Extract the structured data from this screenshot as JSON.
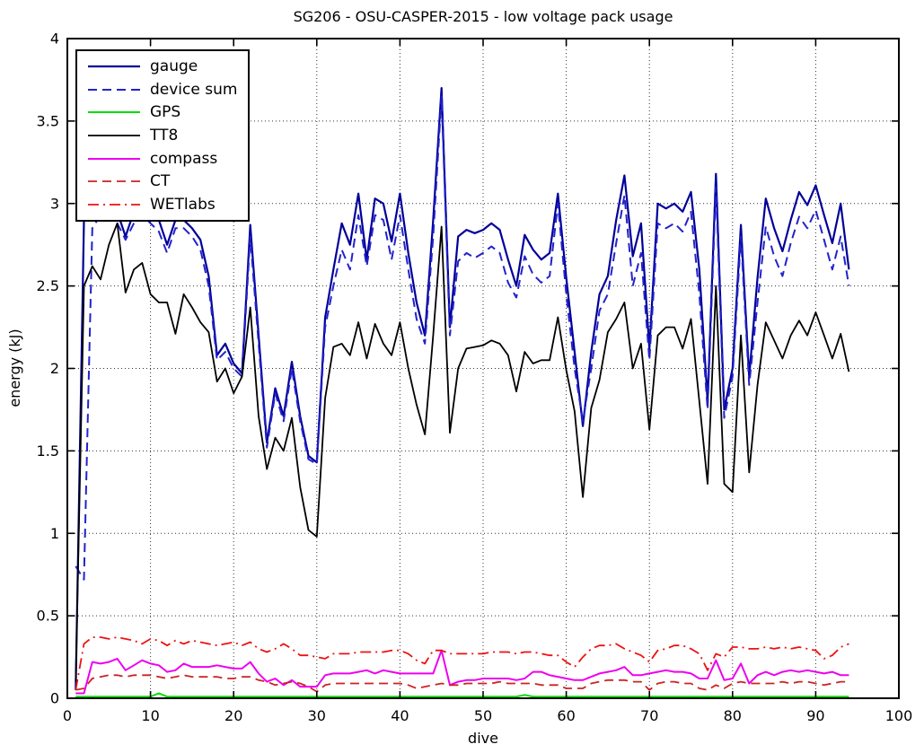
{
  "chart_data": {
    "type": "line",
    "title": "SG206 - OSU-CASPER-2015 - low voltage pack usage",
    "xlabel": "dive",
    "ylabel": "energy (kJ)",
    "xlim": [
      0,
      100
    ],
    "ylim": [
      0,
      4
    ],
    "xticks": [
      0,
      10,
      20,
      30,
      40,
      50,
      60,
      70,
      80,
      90,
      100
    ],
    "yticks": [
      0,
      0.5,
      1,
      1.5,
      2,
      2.5,
      3,
      3.5,
      4
    ],
    "grid": true,
    "grid_style": "dotted",
    "legend_position": "top-left",
    "background_color": "#ffffff",
    "axis_color": "#000000",
    "x": [
      1,
      2,
      3,
      4,
      5,
      6,
      7,
      8,
      9,
      10,
      11,
      12,
      13,
      14,
      15,
      16,
      17,
      18,
      19,
      20,
      21,
      22,
      23,
      24,
      25,
      26,
      27,
      28,
      29,
      30,
      31,
      32,
      33,
      34,
      35,
      36,
      37,
      38,
      39,
      40,
      41,
      42,
      43,
      44,
      45,
      46,
      47,
      48,
      49,
      50,
      51,
      52,
      53,
      54,
      55,
      56,
      57,
      58,
      59,
      60,
      61,
      62,
      63,
      64,
      65,
      66,
      67,
      68,
      69,
      70,
      71,
      72,
      73,
      74,
      75,
      76,
      77,
      78,
      79,
      80,
      81,
      82,
      83,
      84,
      85,
      86,
      87,
      88,
      89,
      90,
      91,
      92,
      93,
      94
    ],
    "series": [
      {
        "name": "gauge",
        "color": "#000099",
        "style": "solid",
        "width": 2.2,
        "values": [
          0.05,
          2.9,
          2.95,
          3.0,
          3.0,
          2.95,
          2.8,
          2.95,
          3.0,
          2.95,
          2.9,
          2.75,
          2.9,
          2.9,
          2.85,
          2.78,
          2.56,
          2.08,
          2.15,
          2.03,
          1.97,
          2.87,
          2.2,
          1.55,
          1.88,
          1.71,
          2.04,
          1.71,
          1.47,
          1.43,
          2.31,
          2.6,
          2.88,
          2.75,
          3.06,
          2.66,
          3.03,
          3.0,
          2.77,
          3.06,
          2.7,
          2.4,
          2.2,
          2.9,
          3.7,
          2.25,
          2.8,
          2.84,
          2.82,
          2.84,
          2.88,
          2.84,
          2.66,
          2.5,
          2.81,
          2.72,
          2.66,
          2.7,
          3.06,
          2.55,
          2.1,
          1.65,
          2.1,
          2.45,
          2.56,
          2.9,
          3.17,
          2.68,
          2.88,
          2.12,
          3.0,
          2.97,
          3.0,
          2.95,
          3.07,
          2.6,
          1.8,
          3.18,
          1.75,
          2.0,
          2.87,
          1.95,
          2.55,
          3.03,
          2.85,
          2.71,
          2.9,
          3.07,
          2.99,
          3.11,
          2.93,
          2.76,
          3.0,
          2.6
        ]
      },
      {
        "name": "device sum",
        "color": "#2222cc",
        "style": "dashed",
        "width": 2,
        "values": [
          0.8,
          0.72,
          2.85,
          2.93,
          2.93,
          2.88,
          2.78,
          2.88,
          2.93,
          2.88,
          2.83,
          2.7,
          2.85,
          2.85,
          2.8,
          2.72,
          2.5,
          2.05,
          2.1,
          2.0,
          1.95,
          2.8,
          2.15,
          1.52,
          1.85,
          1.68,
          2.0,
          1.68,
          1.45,
          1.42,
          2.25,
          2.5,
          2.72,
          2.6,
          2.93,
          2.62,
          2.93,
          2.9,
          2.66,
          2.93,
          2.6,
          2.3,
          2.15,
          2.8,
          3.65,
          2.2,
          2.65,
          2.7,
          2.67,
          2.7,
          2.74,
          2.7,
          2.52,
          2.43,
          2.68,
          2.57,
          2.52,
          2.56,
          3.0,
          2.45,
          2.0,
          1.68,
          2.0,
          2.35,
          2.45,
          2.76,
          3.05,
          2.5,
          2.7,
          2.05,
          2.88,
          2.85,
          2.88,
          2.83,
          2.95,
          2.45,
          1.75,
          3.1,
          1.7,
          1.95,
          2.8,
          1.9,
          2.4,
          2.86,
          2.68,
          2.56,
          2.76,
          2.92,
          2.85,
          2.96,
          2.78,
          2.6,
          2.8,
          2.5
        ]
      },
      {
        "name": "GPS",
        "color": "#00dd00",
        "style": "solid",
        "width": 2,
        "values": [
          0.01,
          0.01,
          0.01,
          0.01,
          0.01,
          0.01,
          0.01,
          0.01,
          0.01,
          0.01,
          0.03,
          0.01,
          0.01,
          0.01,
          0.01,
          0.01,
          0.01,
          0.01,
          0.01,
          0.01,
          0.01,
          0.01,
          0.01,
          0.01,
          0.01,
          0.01,
          0.01,
          0.01,
          0.01,
          0.01,
          0.01,
          0.01,
          0.01,
          0.01,
          0.01,
          0.01,
          0.01,
          0.01,
          0.01,
          0.01,
          0.01,
          0.01,
          0.01,
          0.01,
          0.01,
          0.01,
          0.01,
          0.01,
          0.01,
          0.01,
          0.01,
          0.01,
          0.01,
          0.01,
          0.02,
          0.01,
          0.01,
          0.01,
          0.01,
          0.01,
          0.01,
          0.01,
          0.01,
          0.01,
          0.01,
          0.01,
          0.01,
          0.01,
          0.01,
          0.01,
          0.01,
          0.01,
          0.01,
          0.01,
          0.01,
          0.01,
          0.01,
          0.01,
          0.01,
          0.01,
          0.01,
          0.01,
          0.01,
          0.01,
          0.01,
          0.01,
          0.01,
          0.01,
          0.01,
          0.01,
          0.01,
          0.01,
          0.01,
          0.01
        ]
      },
      {
        "name": "TT8",
        "color": "#000000",
        "style": "solid",
        "width": 1.8,
        "values": [
          0.1,
          2.5,
          2.62,
          2.54,
          2.75,
          2.88,
          2.46,
          2.6,
          2.64,
          2.45,
          2.4,
          2.4,
          2.21,
          2.45,
          2.37,
          2.28,
          2.22,
          1.92,
          2.0,
          1.85,
          1.95,
          2.37,
          1.71,
          1.39,
          1.58,
          1.5,
          1.7,
          1.28,
          1.02,
          0.98,
          1.82,
          2.13,
          2.15,
          2.08,
          2.28,
          2.06,
          2.27,
          2.15,
          2.08,
          2.28,
          2.0,
          1.78,
          1.6,
          2.2,
          2.86,
          1.61,
          2.0,
          2.12,
          2.13,
          2.14,
          2.17,
          2.15,
          2.08,
          1.86,
          2.1,
          2.03,
          2.05,
          2.05,
          2.31,
          1.99,
          1.74,
          1.22,
          1.76,
          1.93,
          2.22,
          2.3,
          2.4,
          2.0,
          2.15,
          1.63,
          2.2,
          2.25,
          2.25,
          2.12,
          2.3,
          1.8,
          1.3,
          2.5,
          1.3,
          1.25,
          2.2,
          1.37,
          1.9,
          2.28,
          2.17,
          2.06,
          2.2,
          2.29,
          2.2,
          2.34,
          2.2,
          2.06,
          2.21,
          1.98
        ]
      },
      {
        "name": "compass",
        "color": "#ee00ee",
        "style": "solid",
        "width": 2,
        "values": [
          0.03,
          0.03,
          0.22,
          0.21,
          0.22,
          0.24,
          0.17,
          0.2,
          0.23,
          0.21,
          0.2,
          0.16,
          0.17,
          0.21,
          0.19,
          0.19,
          0.19,
          0.2,
          0.19,
          0.18,
          0.18,
          0.22,
          0.15,
          0.1,
          0.12,
          0.08,
          0.11,
          0.07,
          0.07,
          0.07,
          0.14,
          0.15,
          0.15,
          0.15,
          0.16,
          0.17,
          0.15,
          0.17,
          0.16,
          0.15,
          0.15,
          0.15,
          0.15,
          0.15,
          0.29,
          0.08,
          0.1,
          0.11,
          0.11,
          0.12,
          0.12,
          0.12,
          0.12,
          0.11,
          0.12,
          0.16,
          0.16,
          0.14,
          0.13,
          0.12,
          0.11,
          0.11,
          0.13,
          0.15,
          0.16,
          0.17,
          0.19,
          0.14,
          0.14,
          0.15,
          0.16,
          0.17,
          0.16,
          0.16,
          0.15,
          0.12,
          0.12,
          0.23,
          0.11,
          0.12,
          0.21,
          0.09,
          0.14,
          0.16,
          0.14,
          0.16,
          0.17,
          0.16,
          0.17,
          0.16,
          0.15,
          0.16,
          0.14,
          0.14
        ]
      },
      {
        "name": "CT",
        "color": "#cc2222",
        "style": "dashed",
        "width": 1.8,
        "values": [
          0.05,
          0.06,
          0.12,
          0.13,
          0.14,
          0.14,
          0.13,
          0.14,
          0.14,
          0.14,
          0.13,
          0.12,
          0.13,
          0.14,
          0.13,
          0.13,
          0.13,
          0.13,
          0.12,
          0.12,
          0.13,
          0.13,
          0.11,
          0.1,
          0.08,
          0.09,
          0.1,
          0.09,
          0.07,
          0.04,
          0.08,
          0.09,
          0.09,
          0.09,
          0.09,
          0.09,
          0.09,
          0.09,
          0.09,
          0.09,
          0.08,
          0.06,
          0.07,
          0.08,
          0.09,
          0.08,
          0.08,
          0.09,
          0.09,
          0.09,
          0.09,
          0.1,
          0.09,
          0.09,
          0.09,
          0.09,
          0.08,
          0.08,
          0.08,
          0.06,
          0.06,
          0.06,
          0.09,
          0.1,
          0.11,
          0.11,
          0.11,
          0.1,
          0.1,
          0.05,
          0.09,
          0.1,
          0.1,
          0.09,
          0.09,
          0.06,
          0.05,
          0.08,
          0.06,
          0.09,
          0.1,
          0.09,
          0.09,
          0.09,
          0.09,
          0.1,
          0.09,
          0.1,
          0.1,
          0.09,
          0.08,
          0.09,
          0.1,
          0.1
        ]
      },
      {
        "name": "WETlabs",
        "color": "#ee1111",
        "style": "dashdot",
        "width": 1.8,
        "values": [
          0.05,
          0.33,
          0.37,
          0.37,
          0.36,
          0.37,
          0.36,
          0.35,
          0.33,
          0.36,
          0.35,
          0.32,
          0.35,
          0.33,
          0.35,
          0.34,
          0.33,
          0.32,
          0.33,
          0.34,
          0.32,
          0.34,
          0.3,
          0.28,
          0.3,
          0.33,
          0.3,
          0.26,
          0.26,
          0.25,
          0.24,
          0.27,
          0.27,
          0.27,
          0.28,
          0.28,
          0.28,
          0.28,
          0.29,
          0.29,
          0.27,
          0.23,
          0.21,
          0.29,
          0.29,
          0.27,
          0.27,
          0.27,
          0.27,
          0.27,
          0.28,
          0.28,
          0.28,
          0.27,
          0.28,
          0.28,
          0.27,
          0.26,
          0.26,
          0.22,
          0.19,
          0.25,
          0.3,
          0.32,
          0.32,
          0.33,
          0.3,
          0.28,
          0.26,
          0.22,
          0.29,
          0.3,
          0.32,
          0.32,
          0.3,
          0.27,
          0.17,
          0.27,
          0.25,
          0.31,
          0.31,
          0.3,
          0.3,
          0.31,
          0.3,
          0.31,
          0.3,
          0.31,
          0.3,
          0.29,
          0.24,
          0.26,
          0.31,
          0.33
        ]
      }
    ]
  }
}
